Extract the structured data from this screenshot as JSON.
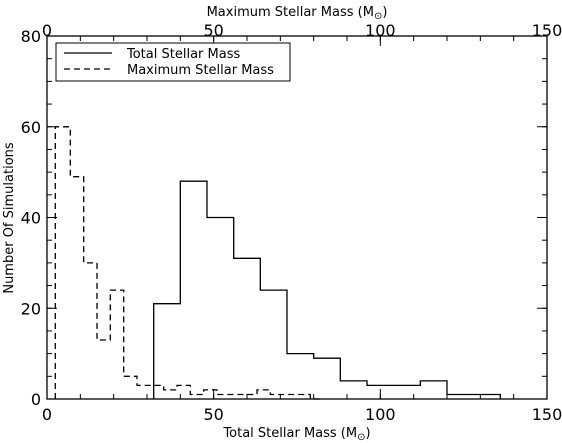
{
  "chart_data": {
    "type": "histogram",
    "xlabel": "Total Stellar Mass (M",
    "xlabel_unit_symbol": "⊙",
    "xlabel_close": ")",
    "x2label": "Maximum Stellar Mass (M",
    "x2label_unit_symbol": "⊙",
    "x2label_close": ")",
    "ylabel": "Number Of Simulations",
    "xlim": [
      0,
      150
    ],
    "ylim": [
      0,
      80
    ],
    "x_ticks": [
      "0",
      "50",
      "100",
      "150"
    ],
    "x2_ticks": [
      "0",
      "50",
      "100",
      "150"
    ],
    "y_ticks": [
      "0",
      "20",
      "40",
      "60",
      "80"
    ],
    "legend": {
      "position": "top-left",
      "entries": [
        {
          "label": "Total Stellar Mass",
          "style": "solid"
        },
        {
          "label": "Maximum Stellar Mass",
          "style": "dashed"
        }
      ]
    },
    "series": [
      {
        "name": "Total Stellar Mass",
        "style": "solid",
        "bin_edges": [
          32,
          40,
          48,
          56,
          64,
          72,
          80,
          88,
          96,
          104,
          112,
          120,
          128,
          136
        ],
        "counts": [
          21,
          48,
          40,
          31,
          24,
          10,
          9,
          4,
          3,
          3,
          4,
          1,
          1
        ]
      },
      {
        "name": "Maximum Stellar Mass",
        "style": "dashed",
        "bin_edges": [
          2.5,
          7,
          11,
          15,
          19,
          23,
          27,
          31,
          35,
          39,
          43,
          47,
          51,
          55,
          59,
          63,
          67,
          71,
          75,
          79,
          83
        ],
        "counts": [
          60,
          49,
          30,
          13,
          24,
          5,
          3,
          3,
          2,
          3,
          1,
          2,
          1,
          1,
          1,
          2,
          1,
          1,
          1,
          0
        ]
      }
    ]
  }
}
